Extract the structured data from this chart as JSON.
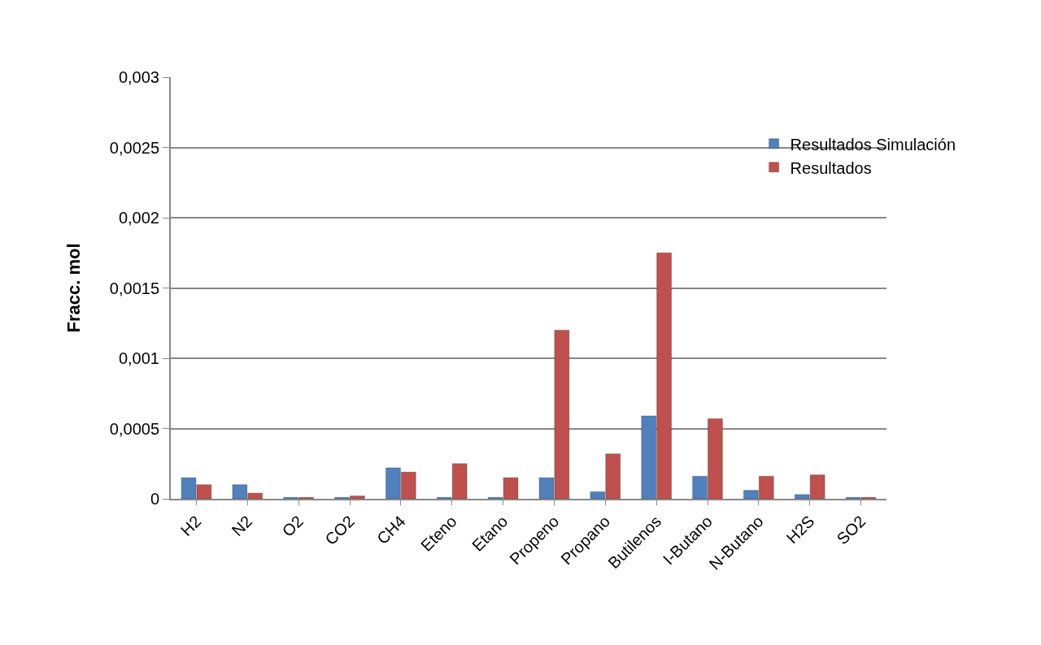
{
  "chart_data": {
    "type": "bar",
    "ylabel": "Fracc. mol",
    "categories": [
      "H2",
      "N2",
      "O2",
      "CO2",
      "CH4",
      "Eteno",
      "Etano",
      "Propeno",
      "Propano",
      "Butilenos",
      "I-Butano",
      "N-Butano",
      "H2S",
      "SO2"
    ],
    "series": [
      {
        "name": "Resultados Simulación",
        "color": "#4f81bd",
        "values": [
          0.00015,
          0.0001,
          1e-05,
          1e-05,
          0.00022,
          1e-05,
          1e-05,
          0.00015,
          5e-05,
          0.00059,
          0.00016,
          6e-05,
          3e-05,
          1e-05
        ]
      },
      {
        "name": "Resultados",
        "color": "#c0504d",
        "values": [
          0.0001,
          4e-05,
          1e-05,
          2e-05,
          0.00019,
          0.00025,
          0.00015,
          0.0012,
          0.00032,
          0.00175,
          0.00057,
          0.00016,
          0.00017,
          1e-05
        ]
      }
    ],
    "ylim": [
      0,
      0.003
    ],
    "yticks": [
      {
        "value": 0,
        "label": "0"
      },
      {
        "value": 0.0005,
        "label": "0,0005"
      },
      {
        "value": 0.001,
        "label": "0,001"
      },
      {
        "value": 0.0015,
        "label": "0,0015"
      },
      {
        "value": 0.002,
        "label": "0,002"
      },
      {
        "value": 0.0025,
        "label": "0,0025"
      },
      {
        "value": 0.003,
        "label": "0,003"
      }
    ],
    "grid": "y",
    "legend": "top right"
  }
}
